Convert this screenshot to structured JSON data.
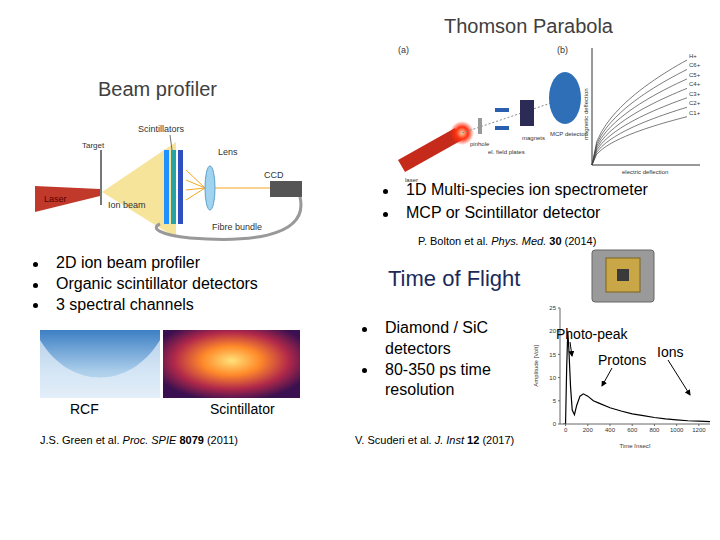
{
  "header": {
    "title": "Thomson Parabola"
  },
  "thomson_parabola": {
    "panel_labels": [
      "(a)",
      "(b)"
    ],
    "labels": {
      "laser": "laser",
      "pinhole": "pinhole",
      "plates": "el. field plates",
      "magnets": "magnets",
      "detector": "MCP detector"
    },
    "axes": {
      "x": "electric deflection",
      "y": "magnetic deflection"
    },
    "species": [
      "H+",
      "C6+",
      "C5+",
      "C4+",
      "C3+",
      "C2+",
      "C1+"
    ],
    "bullets": [
      "1D Multi-species ion spectrometer",
      "MCP or Scintillator detector"
    ],
    "citation": {
      "authors": "P. Bolton et al.",
      "journal": "Phys. Med.",
      "volume": "30",
      "year": "(2014)"
    }
  },
  "beam_profiler": {
    "title": "Beam profiler",
    "labels": {
      "scintillators": "Scintillators",
      "target": "Target",
      "lens": "Lens",
      "ccd": "CCD",
      "laser": "Laser",
      "ion_beam": "Ion beam",
      "fibre": "Fibre bundle"
    },
    "bullets": [
      "2D ion beam profiler",
      "Organic scintillator detectors",
      "3 spectral channels"
    ],
    "images": [
      "RCF",
      "Scintillator"
    ],
    "citation": {
      "authors": "J.S. Green et al.",
      "journal": "Proc. SPIE",
      "volume": "8079",
      "year": "(2011)"
    }
  },
  "time_of_flight": {
    "title": "Time of Flight",
    "bullets": [
      "Diamond / SiC detectors",
      "80-350 ps time resolution"
    ],
    "citation": {
      "authors": "V. Scuderi et al.",
      "journal": "J. Inst",
      "volume": "12",
      "year": "(2017)"
    }
  },
  "chart_data": {
    "type": "line",
    "xlabel": "Time [nsec]",
    "ylabel": "Amplitude [Volt]",
    "x": [
      -20,
      0,
      10,
      20,
      30,
      45,
      60,
      80,
      100,
      130,
      160,
      200,
      250,
      300,
      400,
      500,
      600,
      700,
      800,
      900,
      1000,
      1100,
      1200,
      1300
    ],
    "values": [
      0,
      0,
      12,
      20,
      16,
      8,
      3,
      2,
      4,
      6,
      6.5,
      6,
      5,
      4.5,
      3.5,
      2.8,
      2.2,
      1.8,
      1.4,
      1.1,
      0.9,
      0.7,
      0.6,
      0.5
    ],
    "color": "#000000",
    "xlim": [
      -50,
      1300
    ],
    "ylim": [
      0,
      25
    ],
    "xticks": [
      0,
      200,
      400,
      600,
      800,
      1000,
      1200
    ],
    "yticks": [
      0,
      5,
      10,
      15,
      20,
      25
    ],
    "grid": false,
    "annotations": [
      "Photo-peak",
      "Protons",
      "Ions"
    ]
  }
}
